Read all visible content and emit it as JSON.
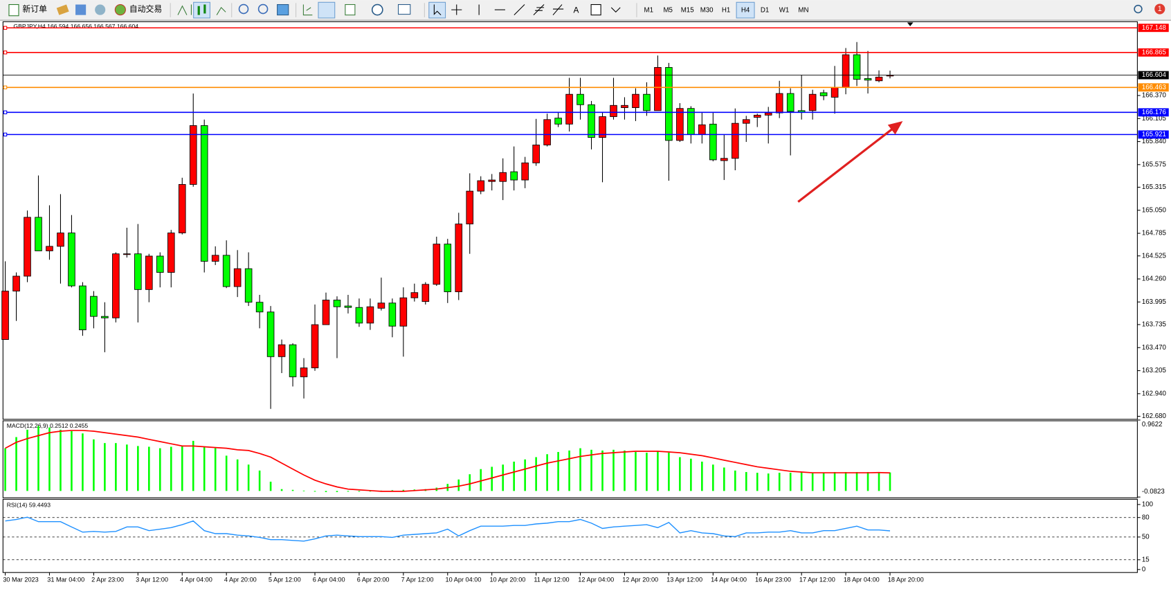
{
  "toolbar": {
    "new_order": "新订单",
    "auto_trading": "自动交易",
    "text_tool": "A",
    "timeframes": [
      "M1",
      "M5",
      "M15",
      "M30",
      "H1",
      "H4",
      "D1",
      "W1",
      "MN"
    ],
    "active_timeframe": "H4",
    "notification": "1"
  },
  "chart_data": [
    {
      "type": "candlestick",
      "title": "GBPJPY,H4  166.594 166.656 166.567 166.604",
      "up_color": "#ff0000",
      "down_color": "#00ff00",
      "categories": [
        "30 Mar 2023",
        null,
        null,
        null,
        "31 Mar 04:00",
        null,
        null,
        null,
        "2 Apr 23:00",
        null,
        null,
        null,
        "3 Apr 12:00",
        null,
        null,
        null,
        "4 Apr 04:00",
        null,
        null,
        null,
        "4 Apr 20:00",
        null,
        null,
        null,
        "5 Apr 12:00",
        null,
        null,
        null,
        "6 Apr 04:00",
        null,
        null,
        null,
        "6 Apr 20:00",
        null,
        null,
        null,
        "7 Apr 12:00",
        null,
        null,
        null,
        "10 Apr 04:00",
        null,
        null,
        null,
        "10 Apr 20:00",
        null,
        null,
        null,
        "11 Apr 12:00",
        null,
        null,
        null,
        "12 Apr 04:00",
        null,
        null,
        null,
        "12 Apr 20:00",
        null,
        null,
        null,
        "13 Apr 12:00",
        null,
        null,
        null,
        "14 Apr 04:00",
        null,
        null,
        null,
        "16 Apr 23:00",
        null,
        null,
        null,
        "17 Apr 12:00",
        null,
        null,
        null,
        "18 Apr 04:00",
        null,
        null,
        null,
        "18 Apr 20:00"
      ],
      "open": [
        163.563,
        164.12,
        164.292,
        164.969,
        164.583,
        164.635,
        164.789,
        164.18,
        164.06,
        163.829,
        163.812,
        164.541,
        164.549,
        164.138,
        164.523,
        164.335,
        164.789,
        165.347,
        166.024,
        164.463,
        164.532,
        164.172,
        164.378,
        163.992,
        163.88,
        163.366,
        163.503,
        163.134,
        163.237,
        163.734,
        164.017,
        163.949,
        163.932,
        163.752,
        163.923,
        163.983,
        163.717,
        164.043,
        164.0,
        164.198,
        164.661,
        164.112,
        164.892,
        165.27,
        165.381,
        165.381,
        165.493,
        165.398,
        165.595,
        165.801,
        166.11,
        166.041,
        166.384,
        166.264,
        165.887,
        166.127,
        166.23,
        166.23,
        166.384,
        166.196,
        166.693,
        165.853,
        166.221,
        165.921,
        166.041,
        165.621,
        165.647,
        166.05,
        166.119,
        166.144,
        166.17,
        166.393,
        166.196,
        166.196,
        166.402,
        166.35,
        166.462,
        166.839,
        166.565,
        166.539,
        166.594
      ],
      "high": [
        164.463,
        164.335,
        165.047,
        165.45,
        165.107,
        165.235,
        164.995,
        164.223,
        164.12,
        163.992,
        164.566,
        164.849,
        164.892,
        164.549,
        164.566,
        164.824,
        165.424,
        166.393,
        166.093,
        164.635,
        164.704,
        164.592,
        164.566,
        164.077,
        163.949,
        163.563,
        163.52,
        163.349,
        163.966,
        164.103,
        164.06,
        164.077,
        164.035,
        164.035,
        164.275,
        164.035,
        164.163,
        164.206,
        164.223,
        164.746,
        164.721,
        165.021,
        165.475,
        165.441,
        165.467,
        165.647,
        165.784,
        165.664,
        166.101,
        166.161,
        166.179,
        166.573,
        166.573,
        166.307,
        166.179,
        166.573,
        166.35,
        166.453,
        166.522,
        166.83,
        166.745,
        166.282,
        166.247,
        166.179,
        166.179,
        165.921,
        166.221,
        166.136,
        166.161,
        166.239,
        166.539,
        166.453,
        166.607,
        166.436,
        166.436,
        166.71,
        166.916,
        166.985,
        166.882,
        166.659,
        166.656
      ],
      "low": [
        163.563,
        163.777,
        164.223,
        164.583,
        164.481,
        164.206,
        164.163,
        163.606,
        163.692,
        163.417,
        163.76,
        164.506,
        163.76,
        163.992,
        164.163,
        164.163,
        164.772,
        165.321,
        164.335,
        164.42,
        164.155,
        164.052,
        163.949,
        163.692,
        162.765,
        163.177,
        163.023,
        162.885,
        163.203,
        163.734,
        163.349,
        163.863,
        163.709,
        163.674,
        163.897,
        163.589,
        163.366,
        164.0,
        163.966,
        164.18,
        163.983,
        164.017,
        164.549,
        165.235,
        165.278,
        165.167,
        165.278,
        165.304,
        165.561,
        165.784,
        166.007,
        165.956,
        166.093,
        165.75,
        165.372,
        166.093,
        166.093,
        166.076,
        166.136,
        166.196,
        165.39,
        165.836,
        165.818,
        165.818,
        165.613,
        165.398,
        165.51,
        165.836,
        166.007,
        165.818,
        166.11,
        165.681,
        166.093,
        166.093,
        166.316,
        166.161,
        166.384,
        166.479,
        166.393,
        166.522,
        166.567
      ],
      "close": [
        164.12,
        164.292,
        164.969,
        164.583,
        164.635,
        164.789,
        164.18,
        163.674,
        163.829,
        163.812,
        164.549,
        164.549,
        164.138,
        164.523,
        164.335,
        164.789,
        165.347,
        166.024,
        164.463,
        164.532,
        164.172,
        164.378,
        163.992,
        163.88,
        163.366,
        163.503,
        163.134,
        163.237,
        163.734,
        164.017,
        163.94,
        163.932,
        163.752,
        163.94,
        163.983,
        163.717,
        164.043,
        164.103,
        164.198,
        164.661,
        164.112,
        164.892,
        165.27,
        165.39,
        165.398,
        165.484,
        165.398,
        165.595,
        165.801,
        166.093,
        166.041,
        166.384,
        166.264,
        165.887,
        166.127,
        166.256,
        166.256,
        166.384,
        166.196,
        166.693,
        165.853,
        166.221,
        165.921,
        166.033,
        165.63,
        165.647,
        166.05,
        166.093,
        166.144,
        166.17,
        166.393,
        166.187,
        166.179,
        166.384,
        166.367,
        166.462,
        166.839,
        166.556,
        166.547,
        166.582,
        166.604
      ],
      "ylim": [
        162.654,
        167.21
      ],
      "yticks": [
        {
          "value": 166.37,
          "label": "166.370"
        },
        166.105,
        {
          "value": 165.84,
          "label": "165.840"
        },
        165.575,
        165.315,
        {
          "value": 165.05,
          "label": "165.050"
        },
        164.785,
        164.525,
        {
          "value": 164.26,
          "label": "164.260"
        },
        163.995,
        163.735,
        {
          "value": 163.47,
          "label": "163.470"
        },
        163.205,
        {
          "value": 162.94,
          "label": "162.940"
        },
        {
          "value": 162.68,
          "label": "162.680"
        }
      ],
      "levels": [
        {
          "value": 167.148,
          "color": "#ff0000"
        },
        {
          "value": 166.865,
          "color": "#ff0000"
        },
        {
          "value": 166.604,
          "color": "#000000"
        },
        {
          "value": 166.463,
          "color": "#ff8c00"
        },
        {
          "value": 166.176,
          "color": "#0000ff"
        },
        {
          "value": 165.921,
          "color": "#0000ff"
        }
      ]
    },
    {
      "type": "macd",
      "title": "MACD(12,26,9) 0.2512 0.2455",
      "color": "#00ff00",
      "signal_color": "#ff0000",
      "histogram": [
        0.58,
        0.731,
        0.831,
        0.882,
        0.862,
        0.831,
        0.811,
        0.781,
        0.7,
        0.65,
        0.65,
        0.63,
        0.61,
        0.6,
        0.58,
        0.6,
        0.61,
        0.68,
        0.6,
        0.58,
        0.479,
        0.428,
        0.358,
        0.277,
        0.126,
        0.025,
        0.015,
        0.005,
        -0.01,
        -0.015,
        -0.015,
        -0.01,
        -0.01,
        -0.005,
        0.005,
        0.01,
        0.015,
        0.02,
        0.025,
        0.045,
        0.096,
        0.156,
        0.227,
        0.297,
        0.328,
        0.358,
        0.398,
        0.428,
        0.459,
        0.499,
        0.529,
        0.549,
        0.58,
        0.559,
        0.549,
        0.559,
        0.549,
        0.529,
        0.519,
        0.539,
        0.519,
        0.459,
        0.438,
        0.398,
        0.358,
        0.318,
        0.277,
        0.257,
        0.247,
        0.237,
        0.247,
        0.247,
        0.257,
        0.247,
        0.247,
        0.257,
        0.257,
        0.257,
        0.257,
        0.257,
        0.2512
      ],
      "signal": [
        0.58,
        0.66,
        0.711,
        0.751,
        0.791,
        0.811,
        0.821,
        0.821,
        0.811,
        0.791,
        0.771,
        0.751,
        0.731,
        0.7,
        0.67,
        0.64,
        0.61,
        0.61,
        0.6,
        0.589,
        0.58,
        0.559,
        0.549,
        0.509,
        0.459,
        0.378,
        0.297,
        0.217,
        0.146,
        0.096,
        0.055,
        0.025,
        0.015,
        0.005,
        -0.005,
        -0.005,
        -0.005,
        0.005,
        0.015,
        0.025,
        0.045,
        0.065,
        0.096,
        0.136,
        0.176,
        0.217,
        0.257,
        0.297,
        0.338,
        0.378,
        0.408,
        0.438,
        0.469,
        0.489,
        0.509,
        0.519,
        0.529,
        0.539,
        0.539,
        0.539,
        0.529,
        0.519,
        0.499,
        0.479,
        0.449,
        0.418,
        0.388,
        0.358,
        0.328,
        0.307,
        0.287,
        0.267,
        0.257,
        0.247,
        0.247,
        0.247,
        0.247,
        0.247,
        0.247,
        0.25,
        0.2455
      ],
      "ylim": [
        -0.0823,
        0.9622
      ],
      "yticks": [
        0.9622,
        -0.0823
      ]
    },
    {
      "type": "line",
      "title": "RSI(14) 59.4493",
      "color": "#1e90ff",
      "values": [
        74.7,
        77.0,
        80.5,
        73.6,
        73.6,
        73.6,
        65.5,
        57.5,
        58.6,
        57.5,
        58.6,
        65.5,
        65.5,
        59.8,
        62.1,
        64.4,
        69.0,
        74.7,
        59.8,
        55.2,
        55.2,
        52.9,
        51.7,
        49.4,
        46.0,
        46.0,
        44.8,
        43.7,
        47.1,
        51.7,
        52.9,
        51.7,
        50.6,
        50.6,
        50.6,
        49.4,
        52.9,
        54.0,
        55.2,
        56.3,
        62.1,
        51.7,
        59.8,
        66.7,
        66.7,
        66.7,
        67.8,
        67.8,
        70.1,
        71.3,
        73.6,
        73.6,
        77.0,
        71.3,
        63.2,
        65.5,
        66.7,
        67.8,
        69.0,
        64.4,
        72.4,
        56.3,
        59.8,
        56.3,
        55.2,
        51.7,
        50.6,
        56.3,
        56.3,
        57.5,
        57.5,
        59.8,
        56.3,
        56.3,
        59.8,
        59.8,
        63.2,
        66.7,
        60.9,
        60.9,
        59.4493
      ],
      "ylim": [
        0,
        100
      ],
      "yticks": [
        100,
        80,
        50,
        15,
        0
      ]
    }
  ]
}
